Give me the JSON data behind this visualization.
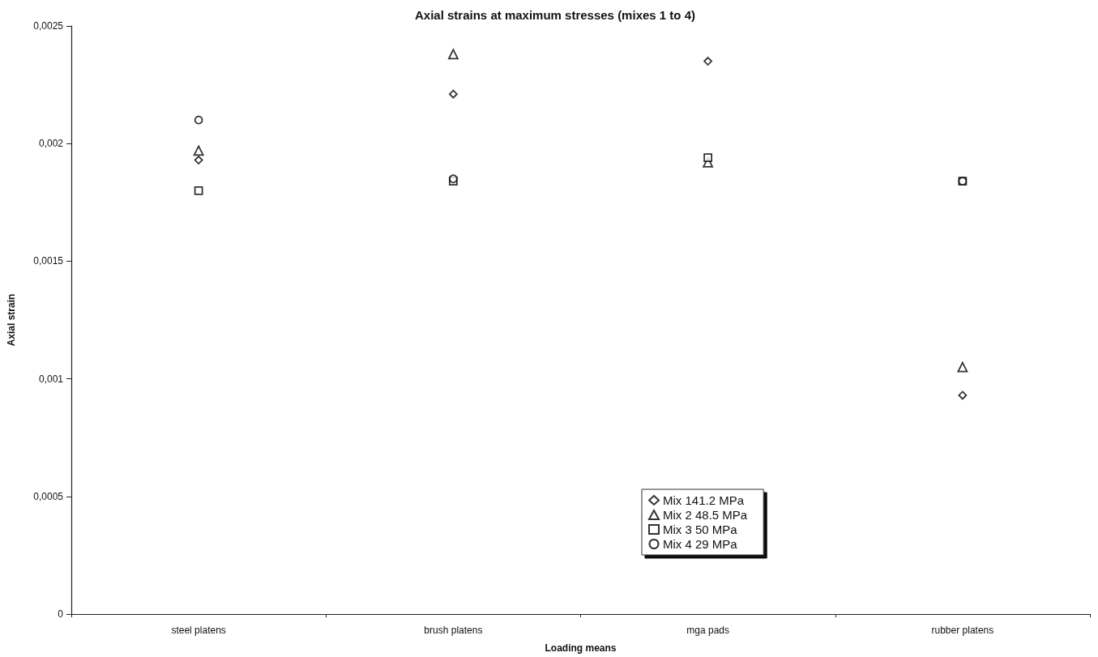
{
  "chart_data": {
    "type": "scatter",
    "title": "Axial strains at maximum stresses (mixes 1 to 4)",
    "xlabel": "Loading means",
    "ylabel": "Axial strain",
    "categories": [
      "steel platens",
      "brush platens",
      "mga pads",
      "rubber platens"
    ],
    "series": [
      {
        "name": "Mix 141.2 MPa",
        "color": "#000000",
        "marker": "diamond",
        "values": [
          0.00193,
          0.00221,
          0.00235,
          0.00093
        ]
      },
      {
        "name": "Mix 2 48.5 MPa",
        "color": "#000000",
        "marker": "triangle",
        "values": [
          0.00197,
          0.00238,
          0.00192,
          0.00105
        ]
      },
      {
        "name": "Mix 3 50 MPa",
        "color": "#000000",
        "marker": "square",
        "values": [
          0.0018,
          0.00184,
          0.00194,
          0.00184
        ]
      },
      {
        "name": "Mix 4 29 MPa",
        "color": "#000000",
        "marker": "circle",
        "values": [
          0.0021,
          0.00185,
          null,
          0.00184
        ]
      }
    ],
    "ylim": [
      0,
      0.0025
    ],
    "yticks": [
      0,
      {
        "value": 0.0005,
        "label": "0,0005"
      },
      {
        "value": 0.001,
        "label": "0,001"
      },
      {
        "value": 0.0015,
        "label": "0,0015"
      },
      {
        "value": 0.002,
        "label": "0,002"
      },
      {
        "value": 0.0025,
        "label": "0,0025"
      }
    ],
    "grid": false,
    "legend": "bottom"
  }
}
